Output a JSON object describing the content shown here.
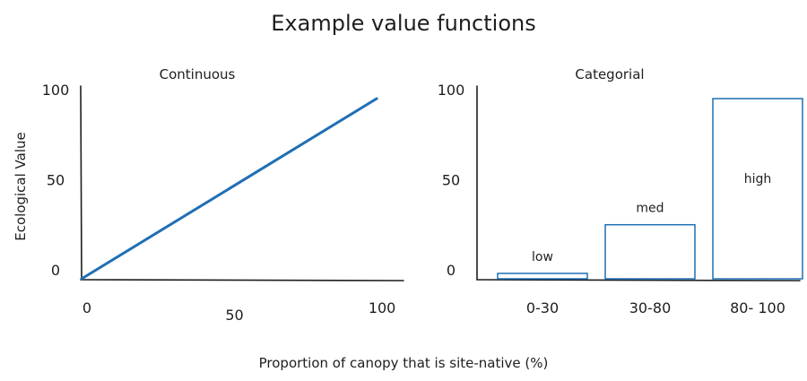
{
  "figure": {
    "title": "Example value functions",
    "ylabel": "Ecological Value",
    "xlabel": "Proportion of canopy that is site-native (%)"
  },
  "chart_data": [
    {
      "type": "line",
      "title": "Continuous",
      "x": [
        0,
        100
      ],
      "y": [
        0,
        100
      ],
      "xlim": [
        0,
        110
      ],
      "ylim": [
        0,
        100
      ],
      "xticks": [
        "0",
        "50",
        "100"
      ],
      "yticks": [
        "0",
        "50",
        "100"
      ],
      "line_color": "#1f6fb4",
      "grid": false
    },
    {
      "type": "bar",
      "title": "Categorial",
      "categories": [
        "0-30",
        "30-80",
        "80- 100"
      ],
      "values": [
        3,
        30,
        100
      ],
      "bar_labels": [
        "low",
        "med",
        "high"
      ],
      "ylim": [
        0,
        100
      ],
      "yticks": [
        "0",
        "50",
        "100"
      ],
      "bar_color": "#1f6fb4",
      "grid": false
    }
  ]
}
